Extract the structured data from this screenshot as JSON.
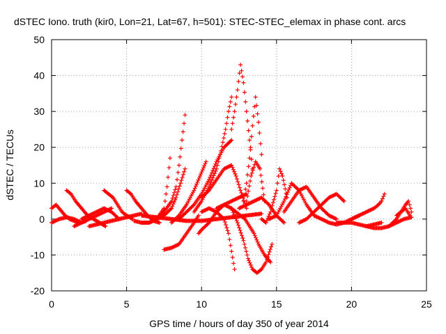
{
  "chart_data": {
    "type": "scatter",
    "title": "dSTEC Iono. truth (kir0, Lon=21, Lat=67, h=501): STEC-STEC_elemax in phase cont. arcs",
    "xlabel": "GPS time / hours of day 350 of year 2014",
    "ylabel": "dSTEC  / TECUs",
    "xlim": [
      0,
      25
    ],
    "ylim": [
      -20,
      50
    ],
    "xticks": [
      "0",
      "5",
      "10",
      "15",
      "20",
      "25"
    ],
    "yticks": [
      "-20",
      "-10",
      "0",
      "10",
      "20",
      "30",
      "40",
      "50"
    ],
    "grid": true,
    "marker": "+",
    "color": "#ff0000",
    "series": [
      {
        "x": [
          0.0,
          0.3,
          0.6,
          0.9,
          1.2,
          1.5,
          1.8
        ],
        "y": [
          3,
          4,
          2.5,
          1,
          0,
          -0.5,
          -1
        ]
      },
      {
        "x": [
          0.0,
          0.5,
          1.0,
          1.5,
          2.0,
          2.3
        ],
        "y": [
          -1,
          0,
          0.5,
          0,
          -1,
          -0.5
        ]
      },
      {
        "x": [
          1.0,
          1.3,
          1.6,
          2.0,
          2.4,
          2.8,
          3.2,
          3.6
        ],
        "y": [
          8,
          7,
          5,
          3,
          1,
          0,
          -1,
          -2
        ]
      },
      {
        "x": [
          1.5,
          2.0,
          2.5,
          3.0,
          3.5,
          4.0
        ],
        "y": [
          -2,
          -1,
          0,
          1,
          2,
          3
        ]
      },
      {
        "x": [
          2.0,
          2.5,
          3.0,
          3.5,
          4.0,
          4.5
        ],
        "y": [
          0,
          1,
          2,
          3,
          2,
          0
        ]
      },
      {
        "x": [
          3.5,
          3.8,
          4.1,
          4.4,
          4.7,
          5.0,
          5.4
        ],
        "y": [
          8,
          7,
          6,
          4,
          2,
          1,
          0
        ]
      },
      {
        "x": [
          2.5,
          3.0,
          3.5,
          4.0,
          4.5,
          5.0,
          5.5,
          6.0
        ],
        "y": [
          -2,
          -1.5,
          -1,
          -0.5,
          0,
          0.5,
          1,
          1.5
        ]
      },
      {
        "x": [
          5.0,
          5.3,
          5.6,
          6.0,
          6.4,
          6.8,
          7.2
        ],
        "y": [
          8,
          7,
          5,
          3,
          1,
          -0.5,
          -1
        ]
      },
      {
        "x": [
          5.5,
          6.0,
          6.5,
          7.0,
          7.5,
          7.7,
          7.9
        ],
        "y": [
          -0.5,
          -1,
          -1,
          0,
          3,
          9,
          17
        ]
      },
      {
        "x": [
          6.0,
          6.5,
          7.0,
          7.5,
          8.0,
          8.3,
          8.5,
          8.7,
          8.9
        ],
        "y": [
          -1,
          -1,
          0,
          2,
          5,
          9,
          15,
          22,
          29
        ]
      },
      {
        "x": [
          6.5,
          7.0,
          7.5,
          8.0,
          8.3,
          8.6,
          8.9
        ],
        "y": [
          -1,
          0,
          1,
          3,
          6,
          10,
          14
        ]
      },
      {
        "x": [
          7.5,
          8.0,
          8.5,
          9.0,
          9.5,
          9.8
        ],
        "y": [
          -8.5,
          -8,
          -7,
          -4,
          -1,
          1
        ]
      },
      {
        "x": [
          6.0,
          7.0,
          8.0,
          9.0,
          10.0,
          11.0,
          12.0,
          13.0,
          14.0
        ],
        "y": [
          1,
          0.5,
          0,
          -0.5,
          -0.5,
          0,
          0.5,
          1,
          1.5
        ]
      },
      {
        "x": [
          8.0,
          8.5,
          9.0,
          9.5,
          9.9,
          10.3
        ],
        "y": [
          -1,
          1,
          4,
          8,
          12,
          16
        ]
      },
      {
        "x": [
          8.5,
          9.0,
          9.5,
          10.0,
          10.5,
          11.0,
          11.5,
          12.0
        ],
        "y": [
          0,
          2,
          4,
          7,
          11,
          16,
          20,
          22
        ]
      },
      {
        "x": [
          9.5,
          10.0,
          10.5,
          11.0,
          11.3,
          11.6,
          11.8,
          12.0
        ],
        "y": [
          2,
          5,
          9,
          14,
          19,
          25,
          30,
          34
        ]
      },
      {
        "x": [
          9.8,
          10.0,
          10.5,
          11.0,
          11.5,
          12.0,
          12.5,
          13.0
        ],
        "y": [
          -4,
          -3,
          -1,
          2,
          4,
          5,
          6,
          7
        ]
      },
      {
        "x": [
          10.0,
          10.5,
          11.0,
          11.5,
          11.8,
          12.0,
          12.2
        ],
        "y": [
          2,
          3,
          2,
          0,
          -4,
          -9,
          -14
        ]
      },
      {
        "x": [
          10.0,
          10.5,
          11.0,
          11.5,
          12.0,
          12.3,
          12.6,
          13.0
        ],
        "y": [
          6,
          8,
          11,
          14,
          15,
          12,
          8,
          3
        ]
      },
      {
        "x": [
          11.0,
          11.5,
          12.0,
          12.4,
          12.8,
          13.1,
          13.4,
          13.7,
          14.0,
          14.3,
          14.7
        ],
        "y": [
          3,
          4,
          3,
          -1,
          -6,
          -11,
          -14,
          -15,
          -14,
          -12,
          -7
        ]
      },
      {
        "x": [
          12.0,
          12.2,
          12.4,
          12.6,
          12.8,
          13.0,
          13.2,
          13.4
        ],
        "y": [
          25,
          30,
          36,
          43,
          38,
          30,
          22,
          14
        ]
      },
      {
        "x": [
          12.0,
          12.3,
          12.6,
          12.9,
          13.2,
          13.5,
          13.8,
          14.2,
          14.6
        ],
        "y": [
          3,
          2,
          1,
          0,
          -2,
          -4,
          -7,
          -10,
          -12
        ]
      },
      {
        "x": [
          12.8,
          13.0,
          13.2,
          13.4,
          13.6,
          13.8,
          14.0
        ],
        "y": [
          5,
          10,
          17,
          26,
          34,
          27,
          18
        ]
      },
      {
        "x": [
          13.0,
          13.3,
          13.6,
          13.9,
          14.2
        ],
        "y": [
          5,
          12,
          16,
          14,
          5
        ]
      },
      {
        "x": [
          12.5,
          13.0,
          13.5,
          14.0,
          14.5,
          15.0,
          15.5
        ],
        "y": [
          3,
          4,
          5,
          6,
          4,
          1,
          -1
        ]
      },
      {
        "x": [
          14.0,
          14.3,
          14.6,
          15.0,
          15.2,
          15.4,
          15.7
        ],
        "y": [
          0,
          -1,
          2,
          8,
          14,
          12,
          6
        ]
      },
      {
        "x": [
          14.5,
          15.0,
          15.5,
          16.0,
          16.5,
          17.0,
          17.5
        ],
        "y": [
          0,
          1,
          5,
          10,
          8,
          4,
          1
        ]
      },
      {
        "x": [
          15.5,
          16.0,
          16.5,
          17.0,
          17.5,
          18.0,
          18.5,
          19.0
        ],
        "y": [
          2,
          5,
          8,
          9,
          6,
          3,
          1,
          0
        ]
      },
      {
        "x": [
          16.5,
          17.0,
          17.5,
          18.0,
          18.5,
          19.0,
          19.5
        ],
        "y": [
          -1,
          0,
          2,
          4,
          6,
          7,
          5
        ]
      },
      {
        "x": [
          17.5,
          18.0,
          18.5,
          19.0,
          19.5,
          20.0,
          20.5
        ],
        "y": [
          1,
          0,
          -1,
          -1.5,
          -1,
          0,
          1
        ]
      },
      {
        "x": [
          19.0,
          19.5,
          20.0,
          20.5,
          21.0,
          21.5,
          22.0
        ],
        "y": [
          -1,
          -1,
          -1,
          -1.5,
          -2,
          -1.5,
          -1
        ]
      },
      {
        "x": [
          20.0,
          20.5,
          21.0,
          21.5,
          21.8,
          22.0,
          22.2
        ],
        "y": [
          0,
          1,
          2,
          3,
          4,
          5,
          7
        ]
      },
      {
        "x": [
          21.0,
          21.5,
          22.0,
          22.5,
          23.0,
          23.5,
          24.0
        ],
        "y": [
          -2,
          -2.5,
          -2.5,
          -2,
          -1,
          0,
          0.5
        ]
      },
      {
        "x": [
          22.5,
          23.0,
          23.3,
          23.6,
          23.8,
          24.0
        ],
        "y": [
          -2,
          0,
          2,
          4,
          5,
          2
        ]
      },
      {
        "x": [
          23.0,
          23.3,
          23.6,
          23.9
        ],
        "y": [
          1,
          2,
          3,
          1
        ]
      }
    ]
  }
}
